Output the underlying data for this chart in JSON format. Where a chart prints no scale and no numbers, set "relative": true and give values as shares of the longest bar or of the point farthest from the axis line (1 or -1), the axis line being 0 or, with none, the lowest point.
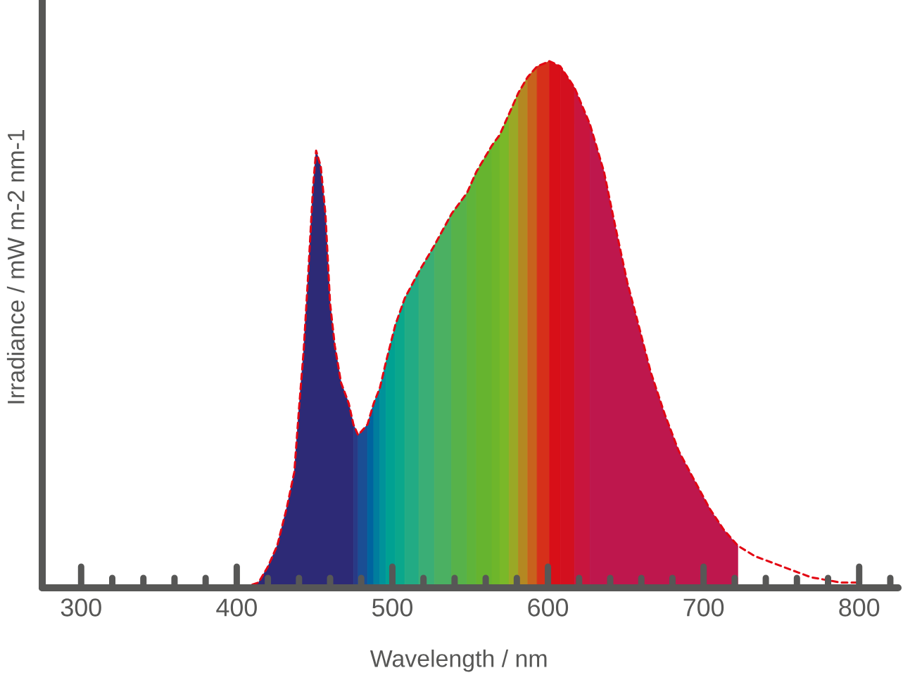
{
  "chart_data": {
    "type": "area",
    "xlabel": "Wavelength / nm",
    "ylabel": "Irradiance / mW m-2 nm-1",
    "relative": true,
    "xlim": [
      275,
      825
    ],
    "xticks": [
      300,
      {
        "value": 320,
        "label": null
      },
      {
        "value": 340,
        "label": null
      },
      {
        "value": 360,
        "label": null
      },
      {
        "value": 380,
        "label": null
      },
      400,
      {
        "value": 420,
        "label": null
      },
      {
        "value": 440,
        "label": null
      },
      {
        "value": 460,
        "label": null
      },
      {
        "value": 480,
        "label": null
      },
      500,
      {
        "value": 520,
        "label": null
      },
      {
        "value": 540,
        "label": null
      },
      {
        "value": 560,
        "label": null
      },
      {
        "value": 580,
        "label": null
      },
      600,
      {
        "value": 620,
        "label": null
      },
      {
        "value": 640,
        "label": null
      },
      {
        "value": 660,
        "label": null
      },
      {
        "value": 680,
        "label": null
      },
      700,
      {
        "value": 720,
        "label": null
      },
      {
        "value": 740,
        "label": null
      },
      {
        "value": 760,
        "label": null
      },
      {
        "value": 780,
        "label": null
      },
      800,
      {
        "value": 820,
        "label": null
      }
    ],
    "series": [
      {
        "color": "#2d2a76",
        "x": [
          404,
          414,
          420,
          426,
          432,
          437,
          440,
          443,
          446,
          449,
          451,
          454,
          457,
          460,
          463,
          467,
          472,
          475
        ],
        "values": [
          0,
          0.01,
          0.04,
          0.08,
          0.15,
          0.22,
          0.34,
          0.45,
          0.6,
          0.76,
          0.83,
          0.8,
          0.71,
          0.54,
          0.46,
          0.39,
          0.35,
          0.31
        ]
      },
      {
        "color": "#283a86",
        "x": [
          475,
          478
        ],
        "values": [
          0.31,
          0.29
        ]
      },
      {
        "color": "#1a4e94",
        "x": [
          478,
          484
        ],
        "values": [
          0.29,
          0.31
        ]
      },
      {
        "color": "#00649f",
        "x": [
          484,
          488
        ],
        "values": [
          0.31,
          0.35
        ]
      },
      {
        "color": "#007e9e",
        "x": [
          488,
          492
        ],
        "values": [
          0.35,
          0.38
        ]
      },
      {
        "color": "#00929a",
        "x": [
          492,
          496
        ],
        "values": [
          0.38,
          0.43
        ]
      },
      {
        "color": "#00a192",
        "x": [
          496,
          502
        ],
        "values": [
          0.43,
          0.5
        ]
      },
      {
        "color": "#0aa78c",
        "x": [
          502,
          508
        ],
        "values": [
          0.5,
          0.55
        ]
      },
      {
        "color": "#22ab84",
        "x": [
          508,
          517
        ],
        "values": [
          0.55,
          0.6
        ]
      },
      {
        "color": "#3aae76",
        "x": [
          517,
          527
        ],
        "values": [
          0.6,
          0.65
        ]
      },
      {
        "color": "#4bb062",
        "x": [
          527,
          538
        ],
        "values": [
          0.65,
          0.71
        ]
      },
      {
        "color": "#57b24a",
        "x": [
          538,
          548
        ],
        "values": [
          0.71,
          0.75
        ]
      },
      {
        "color": "#5fb43a",
        "x": [
          548,
          554
        ],
        "values": [
          0.75,
          0.79
        ]
      },
      {
        "color": "#66b42f",
        "x": [
          554,
          564
        ],
        "values": [
          0.79,
          0.84
        ]
      },
      {
        "color": "#6eb62b",
        "x": [
          564,
          569
        ],
        "values": [
          0.84,
          0.86
        ]
      },
      {
        "color": "#7ab829",
        "x": [
          569,
          575
        ],
        "values": [
          0.86,
          0.9
        ]
      },
      {
        "color": "#9aa826",
        "x": [
          575,
          581
        ],
        "values": [
          0.9,
          0.94
        ]
      },
      {
        "color": "#b48822",
        "x": [
          581,
          587
        ],
        "values": [
          0.94,
          0.97
        ]
      },
      {
        "color": "#c8621d",
        "x": [
          587,
          593
        ],
        "values": [
          0.97,
          0.99
        ]
      },
      {
        "color": "#d6301a",
        "x": [
          593,
          601
        ],
        "values": [
          0.99,
          1
        ]
      },
      {
        "color": "#d80f18",
        "x": [
          601,
          608
        ],
        "values": [
          1,
          0.99
        ]
      },
      {
        "color": "#d3101f",
        "x": [
          608,
          617
        ],
        "values": [
          0.99,
          0.95
        ]
      },
      {
        "color": "#c8153e",
        "x": [
          617,
          627
        ],
        "values": [
          0.95,
          0.88
        ]
      },
      {
        "color": "#be174d",
        "x": [
          627,
          636,
          643,
          651,
          659,
          666,
          675,
          684,
          693,
          704,
          713,
          722
        ],
        "values": [
          0.88,
          0.79,
          0.69,
          0.58,
          0.49,
          0.41,
          0.33,
          0.26,
          0.21,
          0.15,
          0.11,
          0.08
        ]
      },
      {
        "type": "line",
        "color": "#e30613",
        "line_style": "dashed",
        "x": [
          404,
          414,
          420,
          426,
          432,
          437,
          440,
          443,
          446,
          449,
          451,
          454,
          457,
          460,
          463,
          467,
          472,
          475,
          478,
          484,
          488,
          492,
          496,
          502,
          508,
          517,
          527,
          538,
          548,
          554,
          564,
          569,
          575,
          581,
          587,
          593,
          601,
          608,
          617,
          627,
          636,
          643,
          651,
          659,
          666,
          675,
          684,
          693,
          704,
          713,
          722,
          733,
          751,
          769,
          788,
          800
        ],
        "values": [
          0,
          0.01,
          0.04,
          0.08,
          0.15,
          0.22,
          0.34,
          0.45,
          0.6,
          0.76,
          0.83,
          0.8,
          0.71,
          0.54,
          0.46,
          0.39,
          0.35,
          0.31,
          0.29,
          0.31,
          0.35,
          0.38,
          0.43,
          0.5,
          0.55,
          0.6,
          0.65,
          0.71,
          0.75,
          0.79,
          0.84,
          0.86,
          0.9,
          0.94,
          0.97,
          0.99,
          1,
          0.99,
          0.95,
          0.88,
          0.79,
          0.69,
          0.58,
          0.49,
          0.41,
          0.33,
          0.26,
          0.21,
          0.15,
          0.11,
          0.08,
          0.06,
          0.04,
          0.02,
          0.01,
          0.01
        ]
      }
    ]
  }
}
